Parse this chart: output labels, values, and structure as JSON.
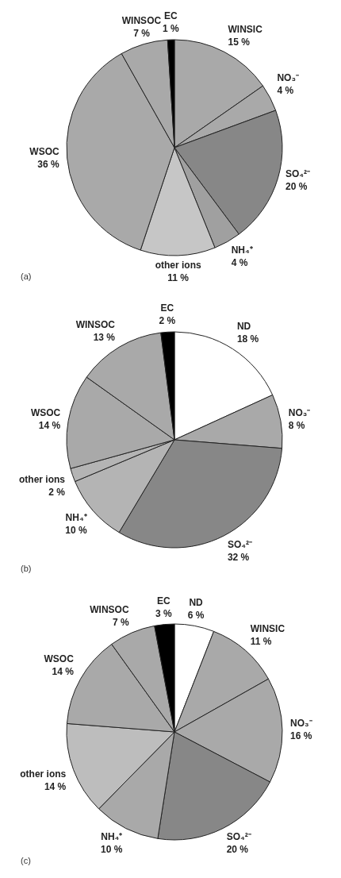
{
  "chart_data": [
    {
      "type": "pie",
      "categories": [
        "WINSIC",
        "NO₃⁻",
        "SO₄²⁻",
        "NH₄⁺",
        "other ions",
        "WSOC",
        "WINSOC",
        "EC"
      ],
      "values": [
        15,
        4,
        20,
        4,
        11,
        36,
        7,
        1
      ],
      "colors": [
        "#a9a9a9",
        "#a9a9a9",
        "#878787",
        "#a0a0a0",
        "#c6c6c6",
        "#a9a9a9",
        "#a9a9a9",
        "#000000"
      ],
      "value_labels": [
        "15 %",
        "4 %",
        "20 %",
        "4 %",
        "11 %",
        "36 %",
        "7 %",
        "1 %"
      ],
      "annotations": [
        "(a)"
      ]
    },
    {
      "type": "pie",
      "categories": [
        "ND",
        "NO₃⁻",
        "SO₄²⁻",
        "NH₄⁺",
        "other ions",
        "WSOC",
        "WINSOC",
        "EC"
      ],
      "values": [
        18,
        8,
        32,
        10,
        2,
        14,
        13,
        2
      ],
      "colors": [
        "#ffffff",
        "#a9a9a9",
        "#878787",
        "#b4b4b4",
        "#b4b4b4",
        "#a9a9a9",
        "#a9a9a9",
        "#000000"
      ],
      "value_labels": [
        "18 %",
        "8 %",
        "32 %",
        "10 %",
        "2 %",
        "14 %",
        "13 %",
        "2 %"
      ],
      "annotations": [
        "(b)"
      ]
    },
    {
      "type": "pie",
      "categories": [
        "ND",
        "WINSIC",
        "NO₃⁻",
        "SO₄²⁻",
        "NH₄⁺",
        "other ions",
        "WSOC",
        "WINSOC",
        "EC"
      ],
      "values": [
        6,
        11,
        16,
        20,
        10,
        14,
        14,
        7,
        3
      ],
      "colors": [
        "#ffffff",
        "#a9a9a9",
        "#a9a9a9",
        "#878787",
        "#a9a9a9",
        "#bdbdbd",
        "#a9a9a9",
        "#a9a9a9",
        "#000000"
      ],
      "value_labels": [
        "6 %",
        "11 %",
        "16 %",
        "20 %",
        "10 %",
        "14 %",
        "14 %",
        "7 %",
        "3 %"
      ],
      "annotations": [
        "(c)"
      ]
    }
  ]
}
